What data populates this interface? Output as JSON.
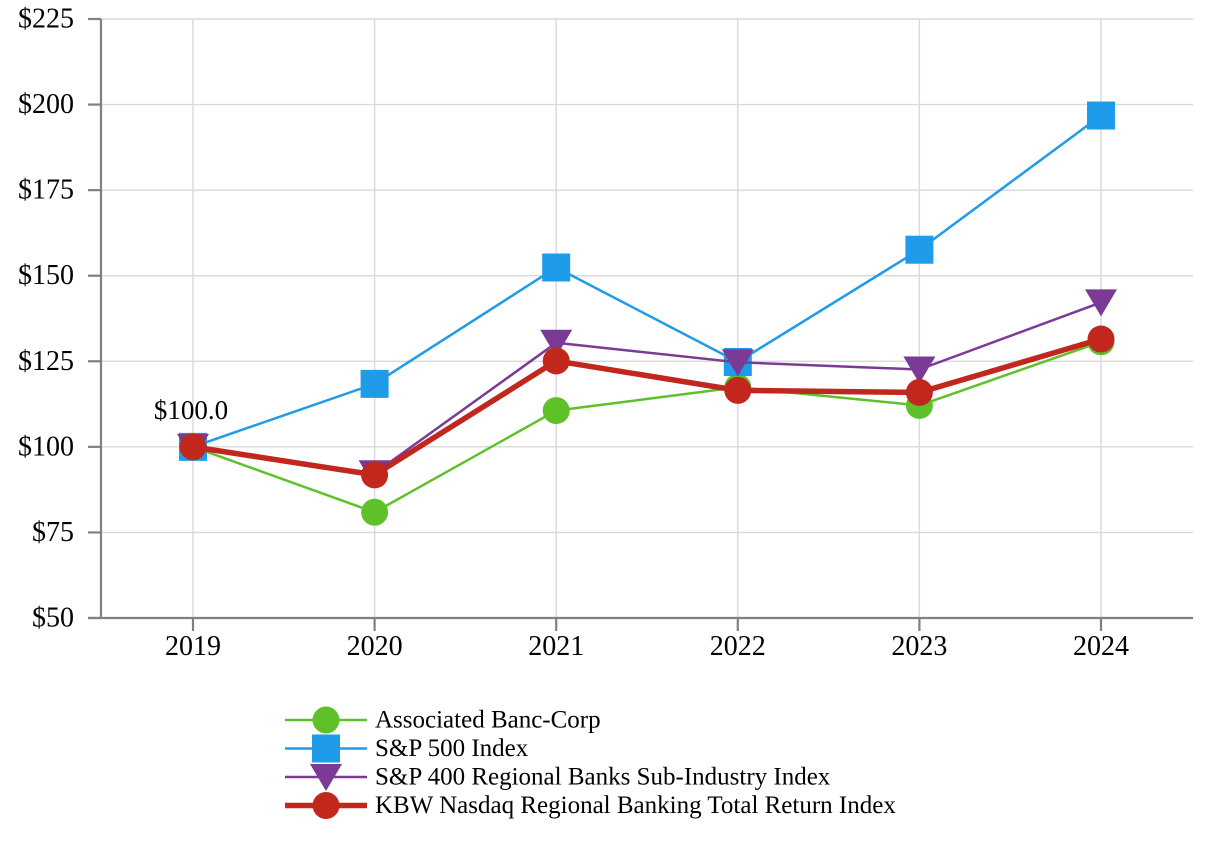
{
  "chart_data": {
    "type": "line",
    "title": "",
    "x_labels": [
      "2019",
      "2020",
      "2021",
      "2022",
      "2023",
      "2024"
    ],
    "y_axis": {
      "min": 50,
      "max": 225,
      "step": 25,
      "ticks": [
        {
          "value": 50,
          "label": "$50"
        },
        {
          "value": 75,
          "label": "$75"
        },
        {
          "value": 100,
          "label": "$100"
        },
        {
          "value": 125,
          "label": "$125"
        },
        {
          "value": 150,
          "label": "$150"
        },
        {
          "value": 175,
          "label": "$175"
        },
        {
          "value": 200,
          "label": "$200"
        },
        {
          "value": 225,
          "label": "$225"
        }
      ]
    },
    "annotation": {
      "text": "$100.0",
      "x_index": 0,
      "y_value": 100
    },
    "series": [
      {
        "name": "Associated Banc-Corp",
        "marker": "circle",
        "color": "#5EC12A",
        "line_width": 2.5,
        "values": [
          100.0,
          80.9,
          110.6,
          117.4,
          112.1,
          130.7
        ]
      },
      {
        "name": "S&P 500 Index",
        "marker": "square",
        "color": "#1E9BE9",
        "line_width": 2.5,
        "values": [
          100.0,
          118.4,
          152.4,
          124.8,
          157.6,
          196.8
        ]
      },
      {
        "name": "S&P 400 Regional Banks Sub-Industry Index",
        "marker": "triangle-down",
        "color": "#7B3A96",
        "line_width": 2.5,
        "values": [
          100.0,
          92.3,
          130.4,
          124.7,
          122.6,
          142.2
        ]
      },
      {
        "name": "KBW Nasdaq Regional Banking Total Return Index",
        "marker": "circle",
        "color": "#C1271D",
        "line_width": 5.5,
        "values": [
          100.0,
          91.8,
          125.1,
          116.5,
          115.9,
          131.5
        ]
      }
    ],
    "legend_position": "bottom-left",
    "grid": true,
    "colors": {
      "gridline": "#D9D9D9",
      "axis": "#808080",
      "text": "#000000",
      "background": "#FFFFFF"
    }
  }
}
